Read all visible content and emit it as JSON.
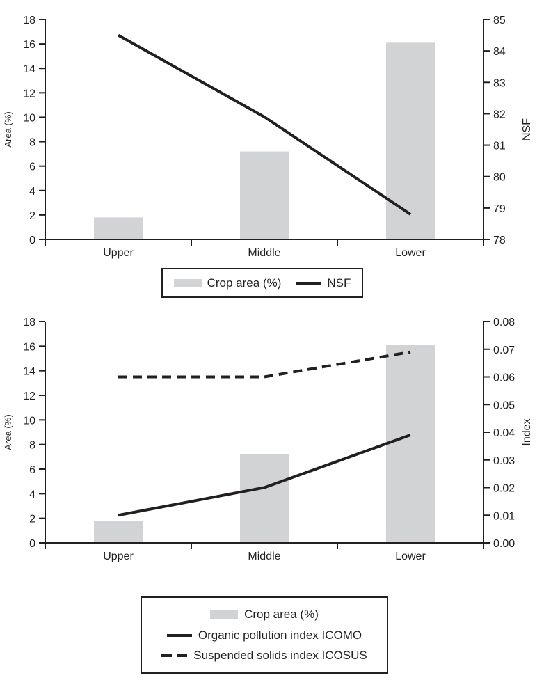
{
  "figure": {
    "background": "#ffffff"
  },
  "colors": {
    "bar_fill": "#d1d3d4",
    "line_color": "#231f20",
    "text_color": "#231f20",
    "axis_color": "#231f20",
    "legend_border": "#231f20"
  },
  "chart_data": [
    {
      "type": "bar",
      "subtype": "bar-line-combo",
      "categories": [
        "Upper",
        "Middle",
        "Lower"
      ],
      "left_axis": {
        "label": "Area (%)",
        "min": 0,
        "max": 18,
        "step": 2,
        "decimals": 0
      },
      "right_axis": {
        "label": "NSF",
        "min": 78,
        "max": 85,
        "step": 1,
        "decimals": 0
      },
      "series": [
        {
          "name": "Crop area (%)",
          "type": "bar",
          "axis": "left",
          "style": "solid",
          "values": [
            1.8,
            7.2,
            16.1
          ]
        },
        {
          "name": "NSF",
          "type": "line",
          "axis": "right",
          "style": "solid",
          "values": [
            84.5,
            81.9,
            78.8
          ]
        }
      ],
      "grid": "off",
      "legend_position": "below"
    },
    {
      "type": "bar",
      "subtype": "bar-line-combo",
      "categories": [
        "Upper",
        "Middle",
        "Lower"
      ],
      "left_axis": {
        "label": "Area (%)",
        "min": 0,
        "max": 18,
        "step": 2,
        "decimals": 0
      },
      "right_axis": {
        "label": "Index",
        "min": 0,
        "max": 0.08,
        "step": 0.01,
        "decimals": 2
      },
      "series": [
        {
          "name": "Crop area (%)",
          "type": "bar",
          "axis": "left",
          "style": "solid",
          "values": [
            1.8,
            7.2,
            16.1
          ]
        },
        {
          "name": "Organic pollution index ICOMO",
          "type": "line",
          "axis": "right",
          "style": "solid",
          "values": [
            0.01,
            0.02,
            0.039
          ]
        },
        {
          "name": "Suspended solids index ICOSUS",
          "type": "line",
          "axis": "right",
          "style": "dashed",
          "values": [
            0.06,
            0.06,
            0.069
          ]
        }
      ],
      "grid": "off",
      "legend_position": "below"
    }
  ],
  "legends": {
    "top": {
      "items": [
        {
          "label": "Crop area (%)",
          "marker": "bar-swatch"
        },
        {
          "label": "NSF",
          "marker": "solid-line"
        }
      ]
    },
    "bottom": {
      "items": [
        {
          "label": "Crop area (%)",
          "marker": "bar-swatch"
        },
        {
          "label": "Organic pollution index ICOMO",
          "marker": "solid-line"
        },
        {
          "label": "Suspended solids index ICOSUS",
          "marker": "dashed-line"
        }
      ]
    }
  }
}
